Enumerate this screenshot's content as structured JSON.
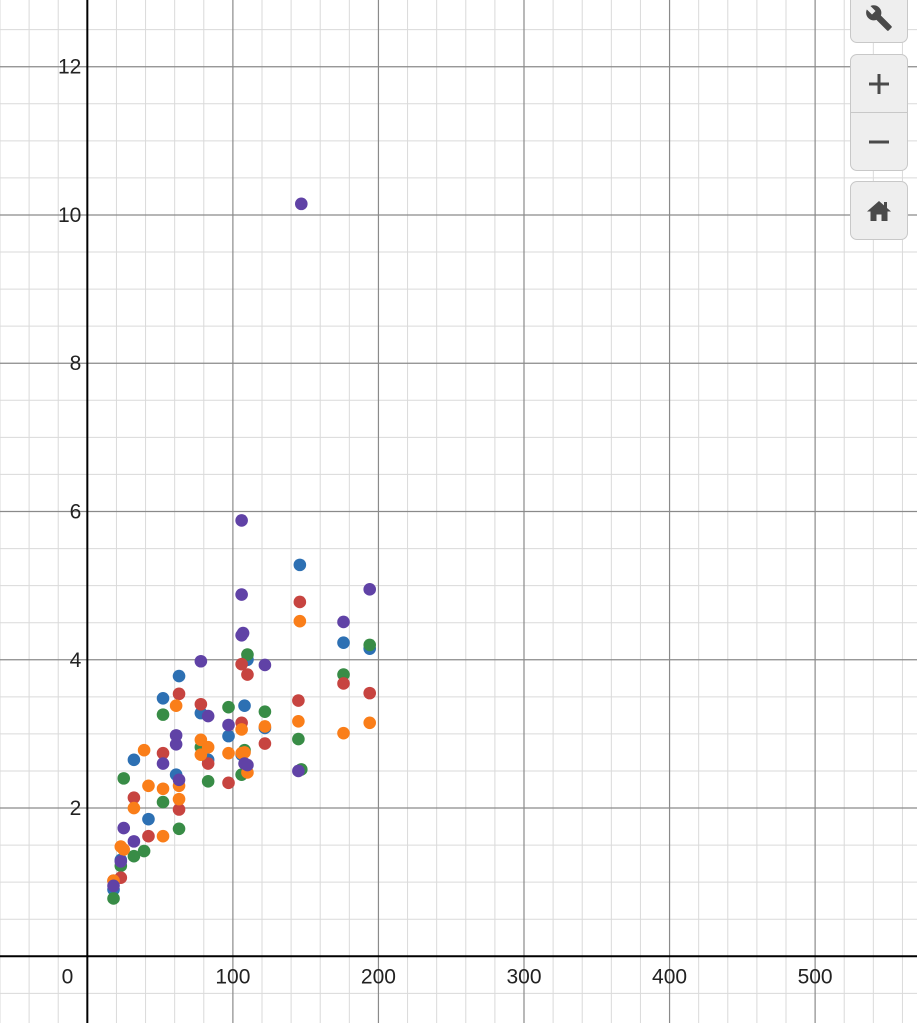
{
  "chart_data": {
    "type": "scatter",
    "title": "",
    "xlabel": "",
    "ylabel": "",
    "xlim": [
      -60,
      570
    ],
    "ylim": [
      -0.9,
      12.9
    ],
    "x_ticks": [
      {
        "value": 0,
        "label": "0"
      },
      {
        "value": 100,
        "label": "100"
      },
      {
        "value": 200,
        "label": "200"
      },
      {
        "value": 300,
        "label": "300"
      },
      {
        "value": 400,
        "label": "400"
      },
      {
        "value": 500,
        "label": "500"
      }
    ],
    "y_ticks": [
      {
        "value": 2,
        "label": "2"
      },
      {
        "value": 4,
        "label": "4"
      },
      {
        "value": 6,
        "label": "6"
      },
      {
        "value": 8,
        "label": "8"
      },
      {
        "value": 10,
        "label": "10"
      },
      {
        "value": 12,
        "label": "12"
      }
    ],
    "grid": true,
    "grid_major": 100,
    "grid_major_y": 2,
    "series": [
      {
        "color": "#2d70b3",
        "points": [
          [
            18,
            0.9
          ],
          [
            23,
            1.3
          ],
          [
            32,
            2.65
          ],
          [
            42,
            1.85
          ],
          [
            52,
            3.48
          ],
          [
            61,
            2.45
          ],
          [
            63,
            3.78
          ],
          [
            78,
            3.28
          ],
          [
            83,
            2.65
          ],
          [
            97,
            2.97
          ],
          [
            106,
            2.72
          ],
          [
            108,
            3.38
          ],
          [
            110,
            4.0
          ],
          [
            122,
            3.08
          ],
          [
            146,
            5.28
          ],
          [
            176,
            4.23
          ],
          [
            194,
            4.15
          ]
        ]
      },
      {
        "color": "#388c46",
        "points": [
          [
            18,
            0.78
          ],
          [
            23,
            1.22
          ],
          [
            25,
            2.4
          ],
          [
            32,
            1.35
          ],
          [
            39,
            1.42
          ],
          [
            52,
            2.08
          ],
          [
            52,
            3.26
          ],
          [
            63,
            1.72
          ],
          [
            78,
            2.82
          ],
          [
            83,
            2.36
          ],
          [
            97,
            3.36
          ],
          [
            106,
            2.45
          ],
          [
            108,
            2.78
          ],
          [
            110,
            4.07
          ],
          [
            122,
            3.3
          ],
          [
            145,
            2.93
          ],
          [
            147,
            2.52
          ],
          [
            176,
            3.8
          ],
          [
            194,
            4.2
          ]
        ]
      },
      {
        "color": "#c74440",
        "points": [
          [
            18,
            1.02
          ],
          [
            23,
            1.06
          ],
          [
            32,
            2.14
          ],
          [
            42,
            1.62
          ],
          [
            52,
            2.74
          ],
          [
            63,
            1.98
          ],
          [
            63,
            3.54
          ],
          [
            78,
            3.4
          ],
          [
            83,
            2.6
          ],
          [
            97,
            2.34
          ],
          [
            106,
            3.15
          ],
          [
            106,
            3.94
          ],
          [
            110,
            3.8
          ],
          [
            122,
            2.87
          ],
          [
            145,
            3.45
          ],
          [
            146,
            4.78
          ],
          [
            176,
            3.68
          ],
          [
            194,
            3.55
          ]
        ]
      },
      {
        "color": "#fa7e19",
        "points": [
          [
            18,
            1.02
          ],
          [
            23,
            1.48
          ],
          [
            25,
            1.44
          ],
          [
            32,
            2.0
          ],
          [
            39,
            2.78
          ],
          [
            42,
            2.3
          ],
          [
            52,
            1.62
          ],
          [
            52,
            2.26
          ],
          [
            61,
            3.38
          ],
          [
            63,
            2.12
          ],
          [
            63,
            2.3
          ],
          [
            78,
            2.72
          ],
          [
            78,
            2.92
          ],
          [
            83,
            2.82
          ],
          [
            97,
            2.74
          ],
          [
            106,
            3.06
          ],
          [
            106,
            2.74
          ],
          [
            108,
            2.75
          ],
          [
            110,
            2.48
          ],
          [
            122,
            3.1
          ],
          [
            145,
            3.17
          ],
          [
            146,
            4.52
          ],
          [
            176,
            3.01
          ],
          [
            194,
            3.15
          ]
        ]
      },
      {
        "color": "#6042a6",
        "points": [
          [
            18,
            0.95
          ],
          [
            23,
            1.28
          ],
          [
            25,
            1.73
          ],
          [
            32,
            1.55
          ],
          [
            52,
            2.6
          ],
          [
            61,
            2.98
          ],
          [
            61,
            2.86
          ],
          [
            63,
            2.38
          ],
          [
            78,
            3.98
          ],
          [
            83,
            3.24
          ],
          [
            97,
            3.12
          ],
          [
            106,
            5.88
          ],
          [
            106,
            4.88
          ],
          [
            106,
            4.33
          ],
          [
            107,
            4.36
          ],
          [
            108,
            2.6
          ],
          [
            110,
            2.58
          ],
          [
            122,
            3.93
          ],
          [
            145,
            2.5
          ],
          [
            147,
            10.15
          ],
          [
            176,
            4.51
          ],
          [
            194,
            4.95
          ]
        ]
      }
    ]
  },
  "toolbar": {
    "settings_icon": "wrench-icon",
    "zoom_in_icon": "plus-icon",
    "zoom_out_icon": "minus-icon",
    "home_icon": "home-icon"
  }
}
